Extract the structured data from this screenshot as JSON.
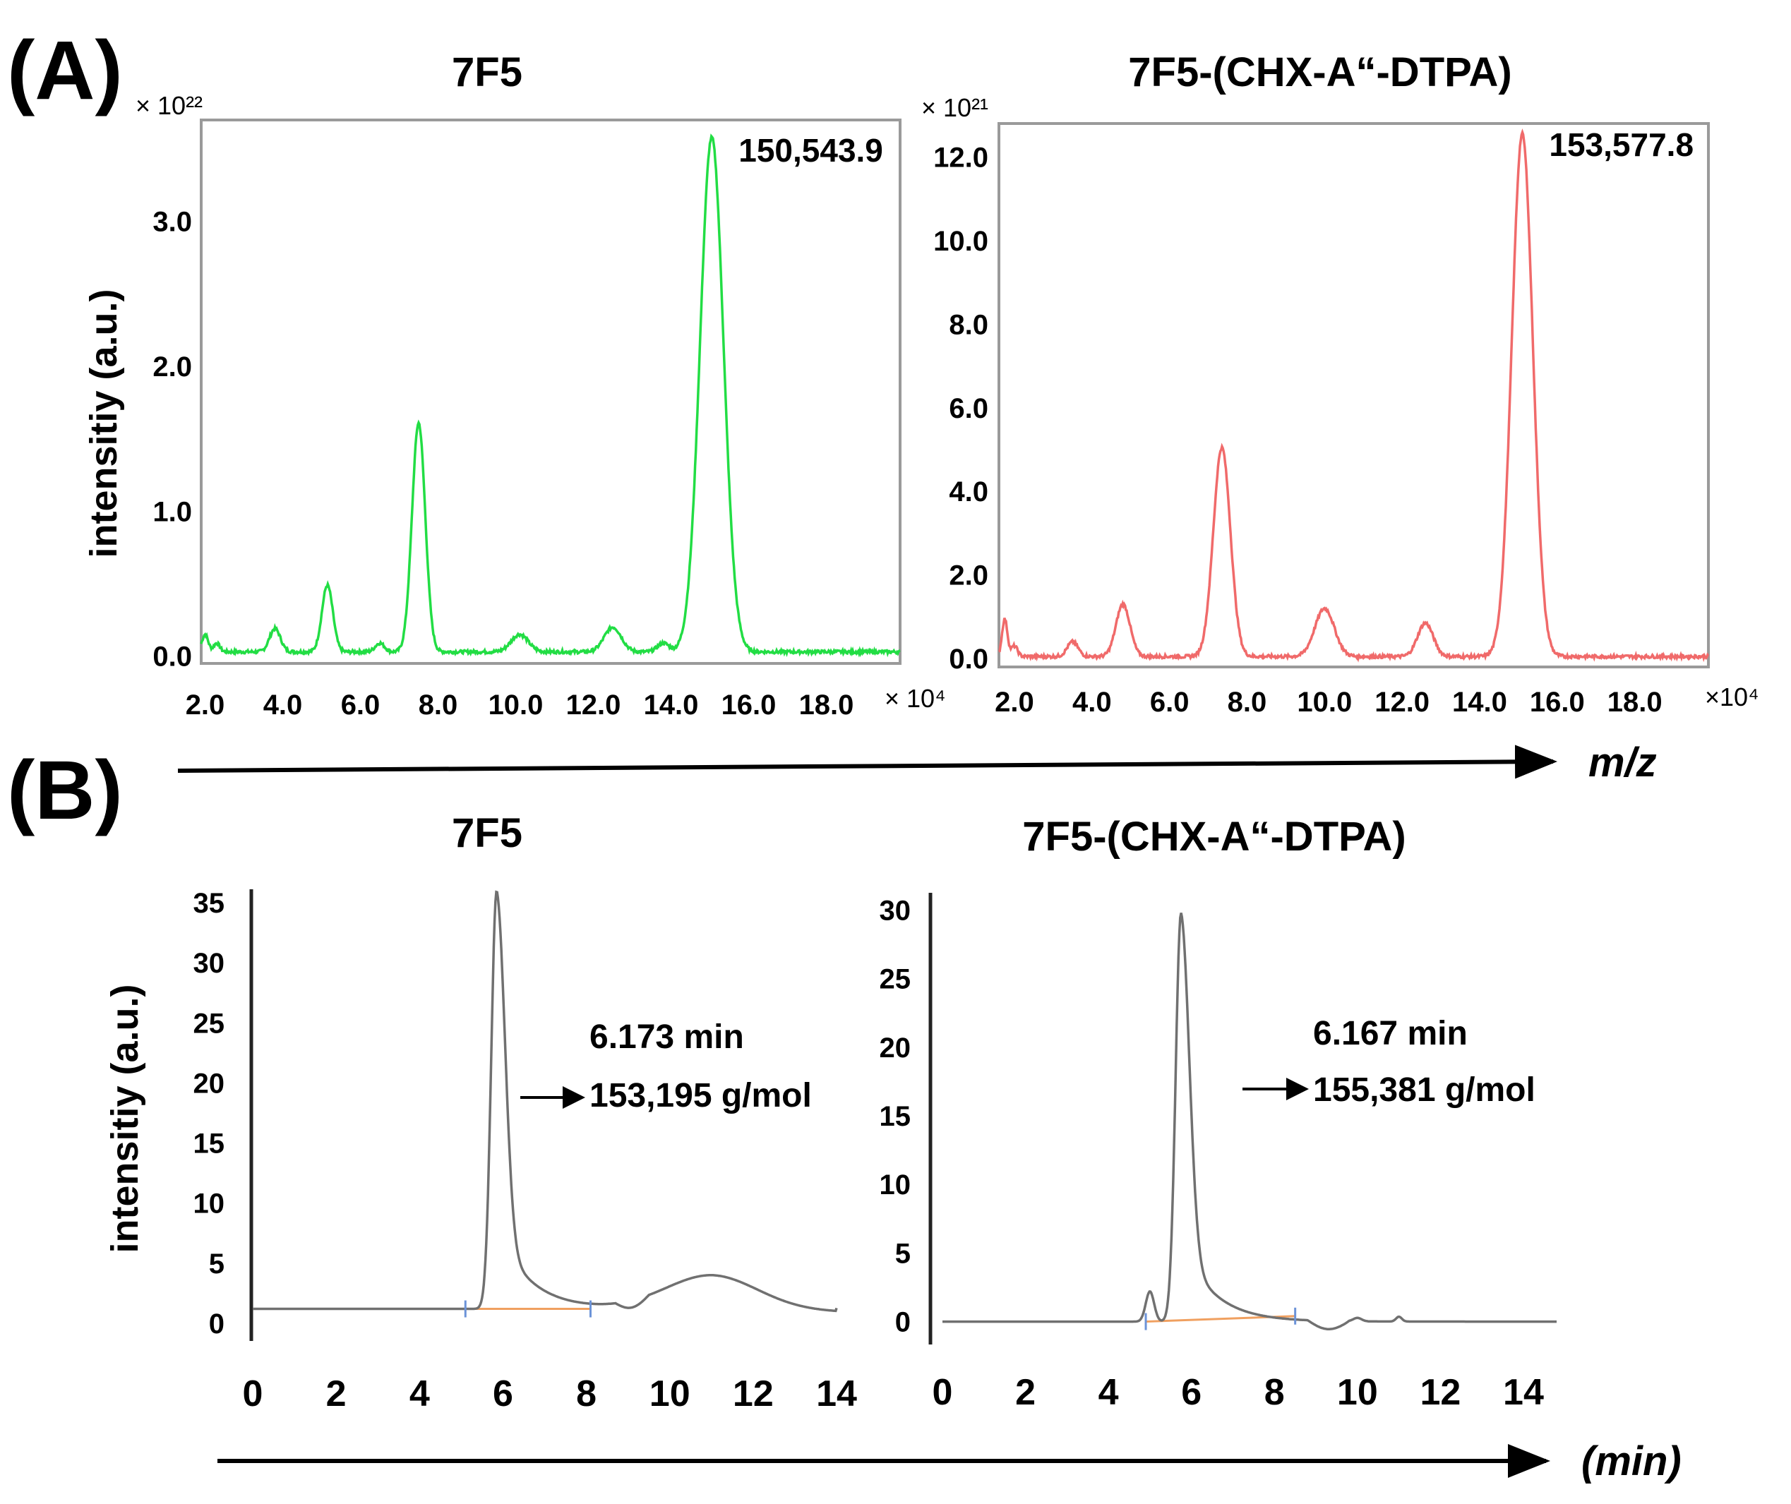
{
  "panel_a_label": "(A)",
  "panel_b_label": "(B)",
  "axis_arrow_a_label": "m/z",
  "axis_arrow_b_label": "(min)",
  "colors": {
    "green": "#22dd44",
    "red": "#f06a6a",
    "gray": "#707070",
    "baseline": "#f0a060",
    "marker": "#6c93d8"
  },
  "chart_data": [
    {
      "id": "A1",
      "type": "line",
      "title": "7F5",
      "ylabel": "intensitiy (a.u.)",
      "y_multiplier": "× 10²²",
      "x_multiplier": "× 10⁴",
      "xlim": [
        1.9,
        19.9
      ],
      "ylim": [
        -0.05,
        3.7
      ],
      "x_ticks": [
        2,
        4,
        6,
        8,
        10,
        12,
        14,
        16,
        18
      ],
      "x_tick_labels": [
        "2.0",
        "4.0",
        "6.0",
        "8.0",
        "10.0",
        "12.0",
        "14.0",
        "16.0",
        "18.0"
      ],
      "y_ticks": [
        0,
        1,
        2,
        3
      ],
      "y_tick_labels": [
        "0.0",
        "1.0",
        "2.0",
        "3.0"
      ],
      "baseline": 0.03,
      "peaks": [
        [
          2.0,
          0.12,
          0.08
        ],
        [
          2.3,
          0.06,
          0.08
        ],
        [
          3.8,
          0.16,
          0.14
        ],
        [
          5.15,
          0.46,
          0.14
        ],
        [
          6.5,
          0.06,
          0.12
        ],
        [
          7.5,
          1.58,
          0.17
        ],
        [
          10.1,
          0.12,
          0.22
        ],
        [
          12.5,
          0.17,
          0.22
        ],
        [
          13.8,
          0.06,
          0.15
        ],
        [
          15.05,
          3.55,
          0.3
        ]
      ],
      "peak_label": "150,543.9",
      "peak_x": 15.05,
      "peak_y": 3.55,
      "line_color": "#22dd44"
    },
    {
      "id": "A2",
      "type": "line",
      "title": "7F5-(CHX-A“-DTPA)",
      "y_multiplier": "× 10²¹",
      "x_multiplier": "×10⁴",
      "xlim": [
        1.6,
        19.9
      ],
      "ylim": [
        -0.2,
        12.8
      ],
      "x_ticks": [
        2,
        4,
        6,
        8,
        10,
        12,
        14,
        16,
        18
      ],
      "x_tick_labels": [
        "2.0",
        "4.0",
        "6.0",
        "8.0",
        "10.0",
        "12.0",
        "14.0",
        "16.0",
        "18.0"
      ],
      "y_ticks": [
        0,
        2,
        4,
        6,
        8,
        10,
        12
      ],
      "y_tick_labels": [
        "0.0",
        "2.0",
        "4.0",
        "6.0",
        "8.0",
        "10.0",
        "12.0"
      ],
      "baseline": 0.05,
      "peaks": [
        [
          1.75,
          0.9,
          0.07
        ],
        [
          2.0,
          0.25,
          0.08
        ],
        [
          3.5,
          0.35,
          0.14
        ],
        [
          4.8,
          1.25,
          0.18
        ],
        [
          7.35,
          5.0,
          0.22
        ],
        [
          10.0,
          1.15,
          0.25
        ],
        [
          12.6,
          0.8,
          0.2
        ],
        [
          15.1,
          12.5,
          0.27
        ]
      ],
      "peak_label": "153,577.8",
      "peak_x": 15.1,
      "peak_y": 12.5,
      "line_color": "#f06a6a"
    },
    {
      "id": "B1",
      "type": "line",
      "title": "7F5",
      "ylabel": "intensitiy (a.u.)",
      "xlim": [
        0,
        14
      ],
      "ylim": [
        -1,
        37
      ],
      "x_ticks": [
        0,
        2,
        4,
        6,
        8,
        10,
        12,
        14
      ],
      "x_tick_labels": [
        "0",
        "2",
        "4",
        "6",
        "8",
        "10",
        "12",
        "14"
      ],
      "y_ticks": [
        0,
        5,
        10,
        15,
        20,
        25,
        30,
        35
      ],
      "y_tick_labels": [
        "0",
        "5",
        "10",
        "15",
        "20",
        "25",
        "30",
        "35"
      ],
      "baseline": 1.2,
      "peak_x": 5.85,
      "peak_y": 36.0,
      "secondary_peak": [
        11.0,
        2.8,
        1.1
      ],
      "retention_time": "6.173 min",
      "molar_mass": "153,195 g/mol",
      "integration_start": 5.1,
      "integration_end": 8.1,
      "line_color": "#707070"
    },
    {
      "id": "B2",
      "type": "line",
      "title": "7F5-(CHX-A“-DTPA)",
      "xlim": [
        0,
        14.8
      ],
      "ylim": [
        -1,
        31
      ],
      "x_ticks": [
        0,
        2,
        4,
        6,
        8,
        10,
        12,
        14
      ],
      "x_tick_labels": [
        "0",
        "2",
        "4",
        "6",
        "8",
        "10",
        "12",
        "14"
      ],
      "y_ticks": [
        0,
        5,
        10,
        15,
        20,
        25,
        30
      ],
      "y_tick_labels": [
        "0",
        "5",
        "10",
        "15",
        "20",
        "25",
        "30"
      ],
      "baseline": 0.0,
      "peak_x": 5.75,
      "peak_y": 29.8,
      "retention_time": "6.167 min",
      "molar_mass": "155,381 g/mol",
      "integration_start": 4.9,
      "integration_end": 8.5,
      "line_color": "#707070"
    }
  ]
}
